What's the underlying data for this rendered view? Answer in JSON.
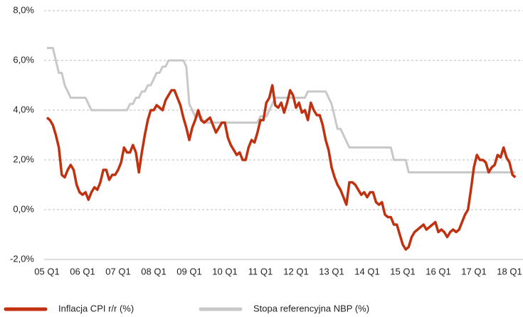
{
  "chart_data": {
    "type": "line",
    "categories": [
      "05 Q1",
      null,
      null,
      null,
      null,
      null,
      null,
      null,
      null,
      null,
      null,
      null,
      "06 Q1",
      null,
      null,
      null,
      null,
      null,
      null,
      null,
      null,
      null,
      null,
      null,
      "07 Q1",
      null,
      null,
      null,
      null,
      null,
      null,
      null,
      null,
      null,
      null,
      null,
      "08 Q1",
      null,
      null,
      null,
      null,
      null,
      null,
      null,
      null,
      null,
      null,
      null,
      "09 Q1",
      null,
      null,
      null,
      null,
      null,
      null,
      null,
      null,
      null,
      null,
      null,
      "10 Q1",
      null,
      null,
      null,
      null,
      null,
      null,
      null,
      null,
      null,
      null,
      null,
      "11 Q1",
      null,
      null,
      null,
      null,
      null,
      null,
      null,
      null,
      null,
      null,
      null,
      "12 Q1",
      null,
      null,
      null,
      null,
      null,
      null,
      null,
      null,
      null,
      null,
      null,
      "13 Q1",
      null,
      null,
      null,
      null,
      null,
      null,
      null,
      null,
      null,
      null,
      null,
      "14 Q1",
      null,
      null,
      null,
      null,
      null,
      null,
      null,
      null,
      null,
      null,
      null,
      "15 Q1",
      null,
      null,
      null,
      null,
      null,
      null,
      null,
      null,
      null,
      null,
      null,
      "16 Q1",
      null,
      null,
      null,
      null,
      null,
      null,
      null,
      null,
      null,
      null,
      null,
      "17 Q1",
      null,
      null,
      null,
      null,
      null,
      null,
      null,
      null,
      null,
      null,
      null,
      "18 Q1",
      null,
      null
    ],
    "series": [
      {
        "name": "Inflacja CPI r/r (%)",
        "color": "#c0310f",
        "values": [
          3.7,
          3.6,
          3.4,
          3.0,
          2.5,
          1.4,
          1.3,
          1.6,
          1.8,
          1.6,
          1.0,
          0.7,
          0.6,
          0.7,
          0.4,
          0.7,
          0.9,
          0.8,
          1.1,
          1.6,
          1.6,
          1.2,
          1.4,
          1.4,
          1.6,
          1.9,
          2.5,
          2.3,
          2.3,
          2.6,
          2.3,
          1.5,
          2.3,
          3.0,
          3.6,
          4.0,
          4.0,
          4.2,
          4.1,
          4.0,
          4.4,
          4.6,
          4.8,
          4.8,
          4.5,
          4.2,
          3.7,
          3.3,
          2.8,
          3.3,
          3.6,
          4.0,
          3.6,
          3.5,
          3.6,
          3.7,
          3.4,
          3.1,
          3.3,
          3.5,
          3.5,
          2.9,
          2.6,
          2.4,
          2.2,
          2.3,
          2.0,
          2.0,
          2.5,
          2.8,
          2.7,
          3.1,
          3.6,
          3.6,
          4.3,
          4.5,
          5.0,
          4.2,
          4.1,
          4.3,
          3.9,
          4.3,
          4.8,
          4.6,
          4.1,
          4.3,
          3.9,
          4.0,
          3.6,
          4.3,
          4.0,
          3.8,
          3.8,
          3.4,
          2.8,
          2.4,
          1.7,
          1.3,
          1.0,
          0.8,
          0.5,
          0.2,
          1.1,
          1.1,
          1.0,
          0.8,
          0.6,
          0.7,
          0.5,
          0.7,
          0.7,
          0.3,
          0.2,
          0.3,
          -0.2,
          -0.3,
          -0.3,
          -0.6,
          -0.6,
          -1.0,
          -1.4,
          -1.6,
          -1.5,
          -1.1,
          -0.9,
          -0.8,
          -0.7,
          -0.6,
          -0.8,
          -0.7,
          -0.6,
          -0.5,
          -0.9,
          -0.8,
          -0.9,
          -1.1,
          -0.9,
          -0.8,
          -0.9,
          -0.8,
          -0.5,
          -0.2,
          0.0,
          0.8,
          1.7,
          2.2,
          2.0,
          2.0,
          1.9,
          1.5,
          1.7,
          1.8,
          2.2,
          2.1,
          2.5,
          2.1,
          1.9,
          1.4,
          1.3
        ]
      },
      {
        "name": "Stopa referencyjna NBP (%)",
        "color": "#c8c8c8",
        "values": [
          6.5,
          6.5,
          6.5,
          6.0,
          5.5,
          5.5,
          5.0,
          4.75,
          4.5,
          4.5,
          4.5,
          4.5,
          4.5,
          4.5,
          4.25,
          4.0,
          4.0,
          4.0,
          4.0,
          4.0,
          4.0,
          4.0,
          4.0,
          4.0,
          4.0,
          4.0,
          4.0,
          4.0,
          4.25,
          4.25,
          4.5,
          4.5,
          4.75,
          4.75,
          5.0,
          5.0,
          5.25,
          5.5,
          5.5,
          5.75,
          5.75,
          6.0,
          6.0,
          6.0,
          6.0,
          6.0,
          6.0,
          5.75,
          4.25,
          4.0,
          3.75,
          3.75,
          3.75,
          3.5,
          3.5,
          3.5,
          3.5,
          3.5,
          3.5,
          3.5,
          3.5,
          3.5,
          3.5,
          3.5,
          3.5,
          3.5,
          3.5,
          3.5,
          3.5,
          3.5,
          3.5,
          3.5,
          3.75,
          3.75,
          3.75,
          4.0,
          4.25,
          4.5,
          4.5,
          4.5,
          4.5,
          4.5,
          4.5,
          4.5,
          4.5,
          4.5,
          4.5,
          4.5,
          4.75,
          4.75,
          4.75,
          4.75,
          4.75,
          4.75,
          4.75,
          4.5,
          4.25,
          3.75,
          3.25,
          3.25,
          3.0,
          2.75,
          2.5,
          2.5,
          2.5,
          2.5,
          2.5,
          2.5,
          2.5,
          2.5,
          2.5,
          2.5,
          2.5,
          2.5,
          2.5,
          2.5,
          2.5,
          2.0,
          2.0,
          2.0,
          2.0,
          2.0,
          1.5,
          1.5,
          1.5,
          1.5,
          1.5,
          1.5,
          1.5,
          1.5,
          1.5,
          1.5,
          1.5,
          1.5,
          1.5,
          1.5,
          1.5,
          1.5,
          1.5,
          1.5,
          1.5,
          1.5,
          1.5,
          1.5,
          1.5,
          1.5,
          1.5,
          1.5,
          1.5,
          1.5,
          1.5,
          1.5,
          1.5,
          1.5,
          1.5,
          1.5,
          1.5,
          1.5,
          1.5
        ]
      }
    ],
    "ylim": [
      -2,
      8
    ],
    "yticks": [
      {
        "value": -2,
        "label": "-2,0%"
      },
      {
        "value": 0,
        "label": "0,0%"
      },
      {
        "value": 2,
        "label": "2,0%"
      },
      {
        "value": 4,
        "label": "4,0%"
      },
      {
        "value": 6,
        "label": "6,0%"
      },
      {
        "value": 8,
        "label": "8,0%"
      }
    ],
    "grid": true,
    "legend": "bottom"
  }
}
